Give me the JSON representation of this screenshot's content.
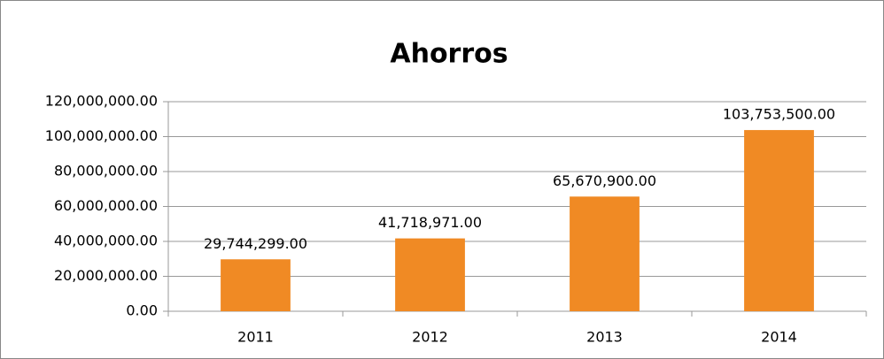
{
  "chart_data": {
    "type": "bar",
    "title": "Ahorros",
    "categories": [
      "2011",
      "2012",
      "2013",
      "2014"
    ],
    "values": [
      29744299,
      41718971,
      65670900,
      103753500
    ],
    "value_labels": [
      "29,744,299.00",
      "41,718,971.00",
      "65,670,900.00",
      "103,753,500.00"
    ],
    "color": "#f08a24",
    "ylim": [
      0,
      120000000
    ],
    "yticks": [
      {
        "value": 0,
        "label": "0.00"
      },
      {
        "value": 20000000,
        "label": "20,000,000.00"
      },
      {
        "value": 40000000,
        "label": "40,000,000.00"
      },
      {
        "value": 60000000,
        "label": "60,000,000.00"
      },
      {
        "value": 80000000,
        "label": "80,000,000.00"
      },
      {
        "value": 100000000,
        "label": "100,000,000.00"
      },
      {
        "value": 120000000,
        "label": "120,000,000.00"
      }
    ],
    "grid": true
  }
}
